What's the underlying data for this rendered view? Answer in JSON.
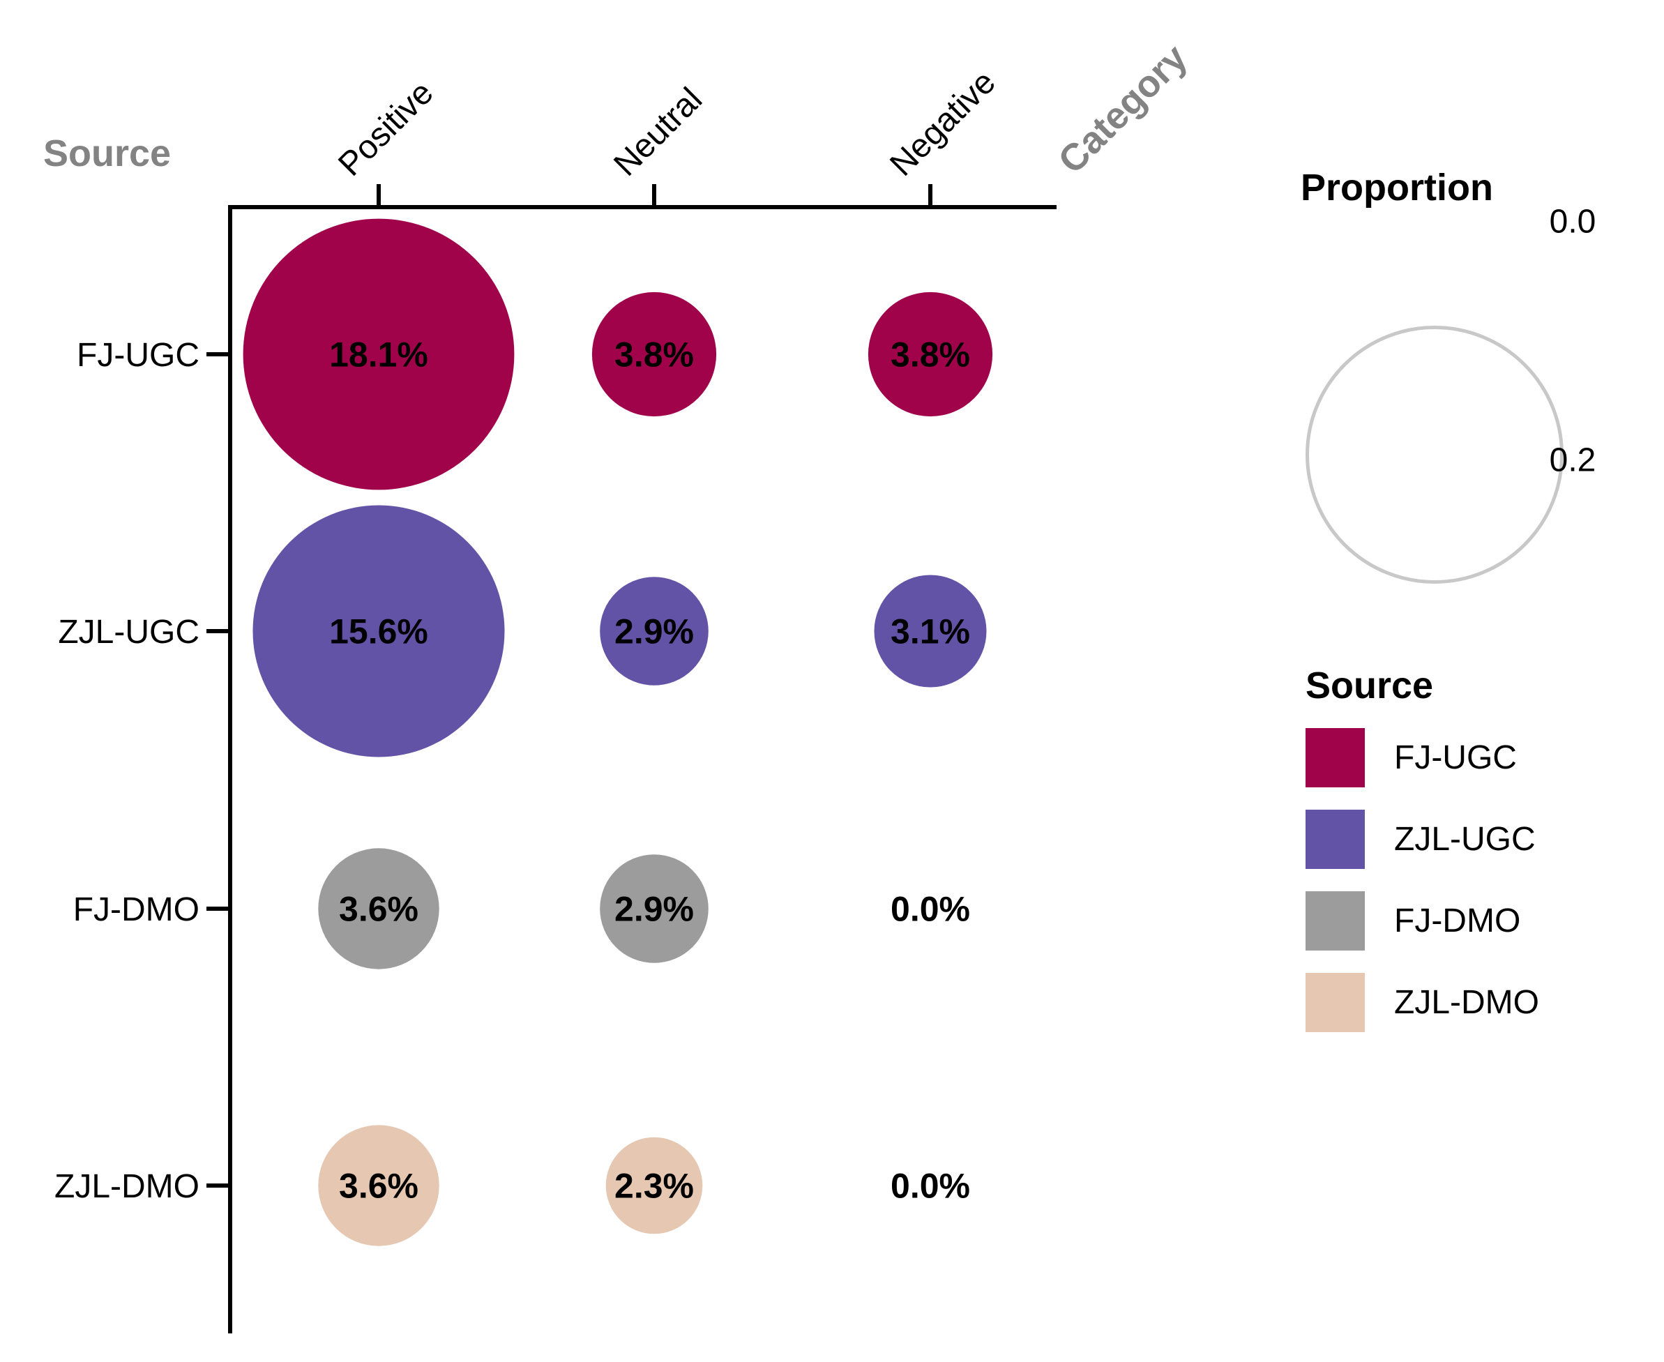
{
  "chart_data": {
    "type": "bubble-matrix",
    "x_axis_title": "Category",
    "y_axis_title": "Source",
    "columns": [
      "Positive",
      "Neutral",
      "Negative"
    ],
    "rows": [
      {
        "name": "FJ-UGC",
        "color": "#A1034B",
        "values": [
          0.181,
          0.038,
          0.038
        ],
        "labels": [
          "18.1%",
          "3.8%",
          "3.8%"
        ]
      },
      {
        "name": "ZJL-UGC",
        "color": "#6353A6",
        "values": [
          0.156,
          0.029,
          0.031
        ],
        "labels": [
          "15.6%",
          "2.9%",
          "3.1%"
        ]
      },
      {
        "name": "FJ-DMO",
        "color": "#9C9C9C",
        "values": [
          0.036,
          0.029,
          0.0
        ],
        "labels": [
          "3.6%",
          "2.9%",
          "0.0%"
        ]
      },
      {
        "name": "ZJL-DMO",
        "color": "#E6C7B1",
        "values": [
          0.036,
          0.023,
          0.0
        ],
        "labels": [
          "3.6%",
          "2.3%",
          "0.0%"
        ]
      }
    ],
    "size_legend": {
      "title": "Proportion",
      "ticks": [
        "0.0",
        "0.2"
      ],
      "max_value": 0.2
    },
    "color_legend": {
      "title": "Source"
    },
    "layout_hints": {
      "axis_position": "top-left",
      "grid": false,
      "legend_position": "right",
      "bubble_scale": "area",
      "value_labels": "percent shown in/next to bubbles"
    },
    "colors": {
      "axis": "#000000",
      "axis_titles_gray": "#838383",
      "size_legend_circle_stroke": "#C8C8C8",
      "bubble_label_text": "#000000"
    }
  }
}
